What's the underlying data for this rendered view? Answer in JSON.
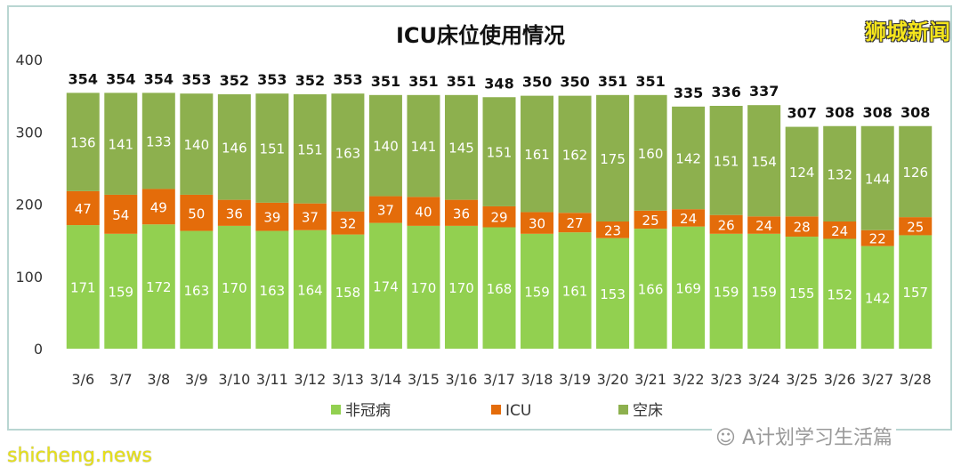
{
  "watermark": {
    "brand": "狮城新闻",
    "site": "shicheng.news",
    "account": "A计划学习生活篇",
    "account_icon": "wechat-icon"
  },
  "chart_data": {
    "type": "bar",
    "stacked": true,
    "title": "ICU床位使用情况",
    "xlabel": "",
    "ylabel": "",
    "ylim": [
      0,
      400
    ],
    "yticks": [
      0,
      100,
      200,
      300,
      400
    ],
    "grid": false,
    "legend_position": "bottom",
    "categories": [
      "3/6",
      "3/7",
      "3/8",
      "3/9",
      "3/10",
      "3/11",
      "3/12",
      "3/13",
      "3/14",
      "3/15",
      "3/16",
      "3/17",
      "3/18",
      "3/19",
      "3/20",
      "3/21",
      "3/22",
      "3/23",
      "3/24",
      "3/25",
      "3/26",
      "3/27",
      "3/28"
    ],
    "series": [
      {
        "name": "非冠病",
        "color": "#92d050",
        "values": [
          171,
          159,
          172,
          163,
          170,
          163,
          164,
          158,
          174,
          170,
          170,
          168,
          159,
          161,
          153,
          166,
          169,
          159,
          159,
          155,
          152,
          142,
          157
        ]
      },
      {
        "name": "ICU",
        "color": "#e46c0a",
        "values": [
          47,
          54,
          49,
          50,
          36,
          39,
          37,
          32,
          37,
          40,
          36,
          29,
          30,
          27,
          23,
          25,
          24,
          26,
          24,
          28,
          24,
          22,
          25
        ]
      },
      {
        "name": "空床",
        "color": "#8db04e",
        "values": [
          136,
          141,
          133,
          140,
          146,
          151,
          151,
          163,
          140,
          141,
          145,
          151,
          161,
          162,
          175,
          160,
          142,
          151,
          154,
          124,
          132,
          144,
          126
        ]
      }
    ],
    "totals": [
      354,
      354,
      354,
      353,
      352,
      353,
      352,
      353,
      351,
      351,
      351,
      348,
      350,
      350,
      351,
      351,
      335,
      336,
      337,
      307,
      308,
      308,
      308
    ]
  }
}
